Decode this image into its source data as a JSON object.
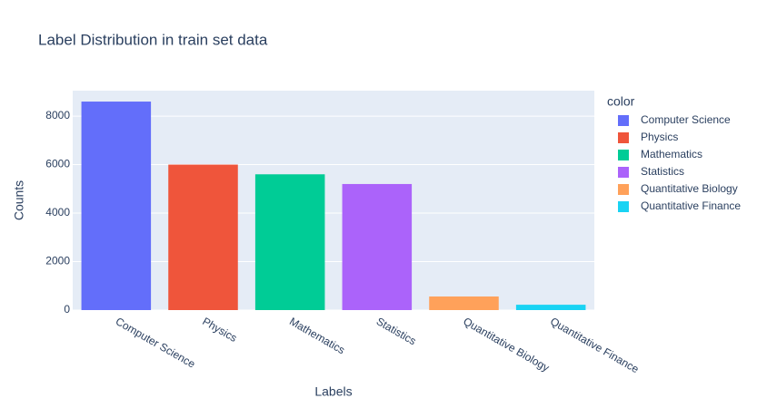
{
  "chart_data": {
    "type": "bar",
    "title": "Label Distribution in train set data",
    "x_label": "Labels",
    "y_label": "Counts",
    "legend_title": "color",
    "categories": [
      "Computer Science",
      "Physics",
      "Mathematics",
      "Statistics",
      "Quantitative Biology",
      "Quantitative Finance"
    ],
    "values": [
      8600,
      6000,
      5600,
      5200,
      560,
      220
    ],
    "colors": [
      "#636efa",
      "#ef553b",
      "#00cc96",
      "#ab63fa",
      "#ffa15a",
      "#19d3f3"
    ],
    "ylim": [
      0,
      9050
    ],
    "yticks": [
      0,
      2000,
      4000,
      6000,
      8000
    ],
    "grid": true,
    "legend": "right"
  }
}
